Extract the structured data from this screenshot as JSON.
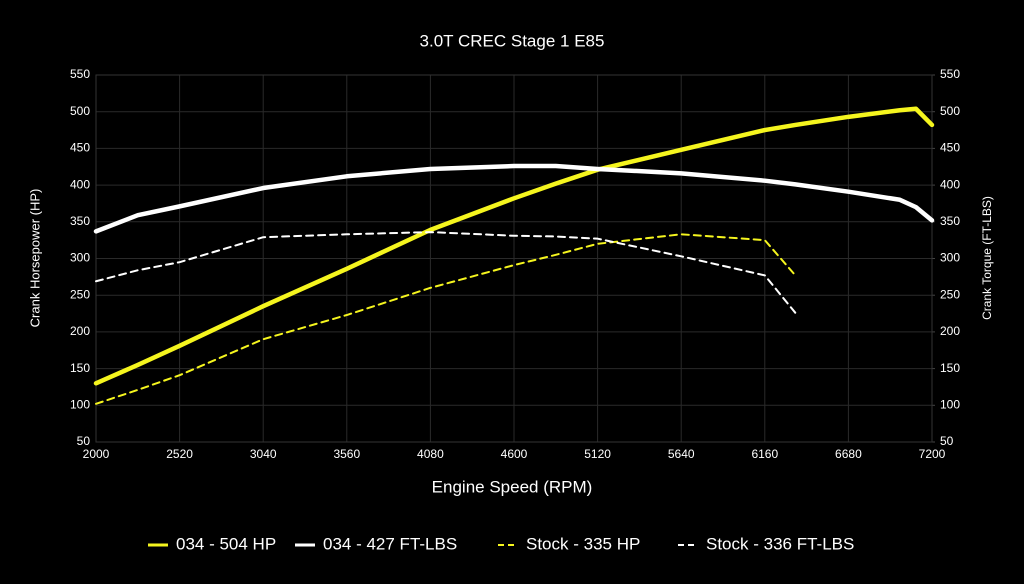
{
  "chart_data": {
    "type": "line",
    "title": "3.0T CREC Stage 1 E85",
    "x_label": "Engine Speed (RPM)",
    "y_label": "Crank Horsepower (HP)",
    "y2_label": "Crank Torque (FT-LBS)",
    "x": [
      2000,
      2260,
      2520,
      3040,
      3560,
      4080,
      4600,
      4860,
      5120,
      5640,
      6160,
      6350,
      6680,
      7000,
      7100,
      7200
    ],
    "xlim": [
      2000,
      7200
    ],
    "xticks": [
      2000,
      2520,
      3040,
      3560,
      4080,
      4600,
      5120,
      5640,
      6160,
      6680,
      7200
    ],
    "ylim": [
      50,
      550
    ],
    "yticks": [
      50,
      100,
      150,
      200,
      250,
      300,
      350,
      400,
      450,
      500,
      550
    ],
    "y2lim": [
      50,
      550
    ],
    "y2ticks": [
      50,
      100,
      150,
      200,
      250,
      300,
      350,
      400,
      450,
      500,
      550
    ],
    "grid": true,
    "legend": "bottom",
    "series": [
      {
        "name": "034 - 504 HP",
        "color": "#f5f51e",
        "style": "solid",
        "values": [
          130,
          155,
          181,
          235,
          286,
          339,
          382,
          402,
          421,
          448,
          475,
          482,
          493,
          502,
          504,
          482
        ]
      },
      {
        "name": "034 - 427 FT-LBS",
        "color": "#ffffff",
        "style": "solid",
        "axis": "y2",
        "values": [
          337,
          359,
          371,
          396,
          412,
          422,
          426,
          426,
          422,
          416,
          406,
          401,
          391,
          380,
          370,
          352
        ]
      },
      {
        "name": "Stock - 335 HP",
        "color": "#f5f51e",
        "style": "dashed",
        "values": [
          102,
          121,
          141,
          190,
          223,
          260,
          291,
          305,
          320,
          333,
          325,
          277,
          null,
          null,
          null,
          null
        ]
      },
      {
        "name": "Stock - 336 FT-LBS",
        "color": "#ffffff",
        "style": "dashed",
        "axis": "y2",
        "values": [
          269,
          284,
          295,
          329,
          333,
          336,
          331,
          330,
          327,
          303,
          277,
          226,
          null,
          null,
          null,
          null
        ]
      }
    ]
  }
}
